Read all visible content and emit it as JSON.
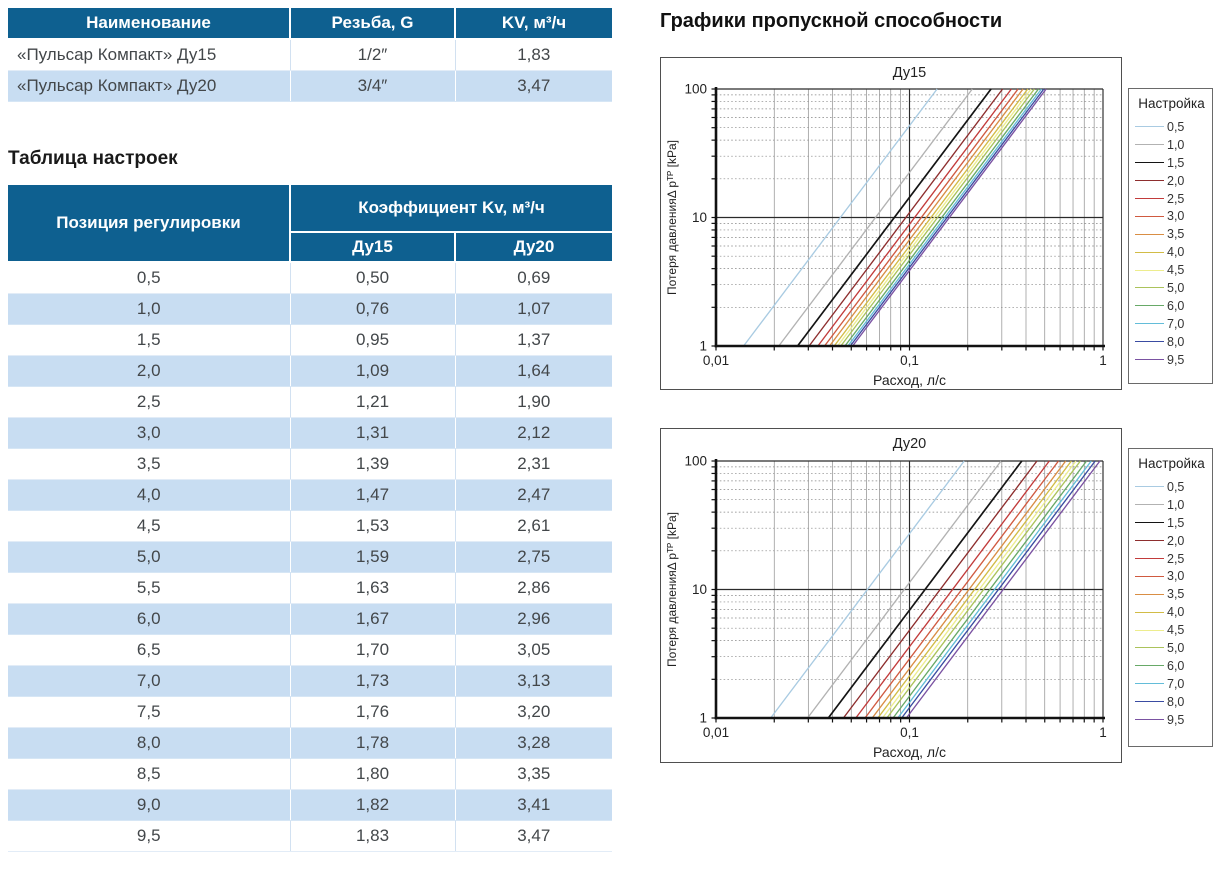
{
  "theme": {
    "header_bg": "#0e6090",
    "row_alt": "#c8ddf2"
  },
  "left": {
    "product_table": {
      "headers": [
        "Наименование",
        "Резьба, G",
        "KV, м³/ч"
      ],
      "rows": [
        [
          "«Пульсар Компакт» Ду15",
          "1/2″",
          "1,83"
        ],
        [
          "«Пульсар Компакт» Ду20",
          "3/4″",
          "3,47"
        ]
      ]
    },
    "settings_title": "Таблица настроек",
    "settings_table": {
      "col1_header": "Позиция регулировки",
      "group_header": "Коэффициент Kv, м³/ч",
      "sub_headers": [
        "Ду15",
        "Ду20"
      ],
      "rows": [
        [
          "0,5",
          "0,50",
          "0,69"
        ],
        [
          "1,0",
          "0,76",
          "1,07"
        ],
        [
          "1,5",
          "0,95",
          "1,37"
        ],
        [
          "2,0",
          "1,09",
          "1,64"
        ],
        [
          "2,5",
          "1,21",
          "1,90"
        ],
        [
          "3,0",
          "1,31",
          "2,12"
        ],
        [
          "3,5",
          "1,39",
          "2,31"
        ],
        [
          "4,0",
          "1,47",
          "2,47"
        ],
        [
          "4,5",
          "1,53",
          "2,61"
        ],
        [
          "5,0",
          "1,59",
          "2,75"
        ],
        [
          "5,5",
          "1,63",
          "2,86"
        ],
        [
          "6,0",
          "1,67",
          "2,96"
        ],
        [
          "6,5",
          "1,70",
          "3,05"
        ],
        [
          "7,0",
          "1,73",
          "3,13"
        ],
        [
          "7,5",
          "1,76",
          "3,20"
        ],
        [
          "8,0",
          "1,78",
          "3,28"
        ],
        [
          "8,5",
          "1,80",
          "3,35"
        ],
        [
          "9,0",
          "1,82",
          "3,41"
        ],
        [
          "9,5",
          "1,83",
          "3,47"
        ]
      ]
    }
  },
  "right": {
    "title": "Графики пропускной способности"
  },
  "chart_data": [
    {
      "type": "line",
      "title": "Ду15",
      "xlabel": "Расход, л/с",
      "ylabel": "Потеря давленияΔ pᵀᴾ [kPa]",
      "xscale": "log",
      "yscale": "log",
      "xlim": [
        0.01,
        1
      ],
      "ylim": [
        1,
        100
      ],
      "x_tick_labels": [
        "0,01",
        "0,1",
        "1"
      ],
      "y_tick_labels": [
        "1",
        "10",
        "100"
      ],
      "grid": true,
      "legend_title": "Настройка",
      "legend_position": "right",
      "relation": "dp_kPa = 100 * (3.6 * Q_ls / Kv)^2",
      "series": [
        {
          "name": "0,5",
          "kv": 0.5,
          "color": "#a9cbe2"
        },
        {
          "name": "1,0",
          "kv": 0.76,
          "color": "#b2b2b2"
        },
        {
          "name": "1,5",
          "kv": 0.95,
          "color": "#141414"
        },
        {
          "name": "2,0",
          "kv": 1.09,
          "color": "#8e2e2e"
        },
        {
          "name": "2,5",
          "kv": 1.21,
          "color": "#c23b3b"
        },
        {
          "name": "3,0",
          "kv": 1.31,
          "color": "#d05a40"
        },
        {
          "name": "3,5",
          "kv": 1.39,
          "color": "#d98e44"
        },
        {
          "name": "4,0",
          "kv": 1.47,
          "color": "#d2bc46"
        },
        {
          "name": "4,5",
          "kv": 1.53,
          "color": "#eded8e"
        },
        {
          "name": "5,0",
          "kv": 1.59,
          "color": "#abc35b"
        },
        {
          "name": "6,0",
          "kv": 1.67,
          "color": "#67a967"
        },
        {
          "name": "7,0",
          "kv": 1.73,
          "color": "#63bdd9"
        },
        {
          "name": "8,0",
          "kv": 1.78,
          "color": "#3a4ca2"
        },
        {
          "name": "9,5",
          "kv": 1.83,
          "color": "#7a52a2"
        }
      ]
    },
    {
      "type": "line",
      "title": "Ду20",
      "xlabel": "Расход, л/с",
      "ylabel": "Потеря давленияΔ pᵀᴾ [kPa]",
      "xscale": "log",
      "yscale": "log",
      "xlim": [
        0.01,
        1
      ],
      "ylim": [
        1,
        100
      ],
      "x_tick_labels": [
        "0,01",
        "0,1",
        "1"
      ],
      "y_tick_labels": [
        "1",
        "10",
        "100"
      ],
      "grid": true,
      "legend_title": "Настройка",
      "legend_position": "right",
      "relation": "dp_kPa = 100 * (3.6 * Q_ls / Kv)^2",
      "series": [
        {
          "name": "0,5",
          "kv": 0.69,
          "color": "#a9cbe2"
        },
        {
          "name": "1,0",
          "kv": 1.07,
          "color": "#b2b2b2"
        },
        {
          "name": "1,5",
          "kv": 1.37,
          "color": "#141414"
        },
        {
          "name": "2,0",
          "kv": 1.64,
          "color": "#8e2e2e"
        },
        {
          "name": "2,5",
          "kv": 1.9,
          "color": "#c23b3b"
        },
        {
          "name": "3,0",
          "kv": 2.12,
          "color": "#d05a40"
        },
        {
          "name": "3,5",
          "kv": 2.31,
          "color": "#d98e44"
        },
        {
          "name": "4,0",
          "kv": 2.47,
          "color": "#d2bc46"
        },
        {
          "name": "4,5",
          "kv": 2.61,
          "color": "#eded8e"
        },
        {
          "name": "5,0",
          "kv": 2.75,
          "color": "#abc35b"
        },
        {
          "name": "6,0",
          "kv": 2.96,
          "color": "#67a967"
        },
        {
          "name": "7,0",
          "kv": 3.13,
          "color": "#63bdd9"
        },
        {
          "name": "8,0",
          "kv": 3.28,
          "color": "#3a4ca2"
        },
        {
          "name": "9,5",
          "kv": 3.47,
          "color": "#7a52a2"
        }
      ]
    }
  ]
}
